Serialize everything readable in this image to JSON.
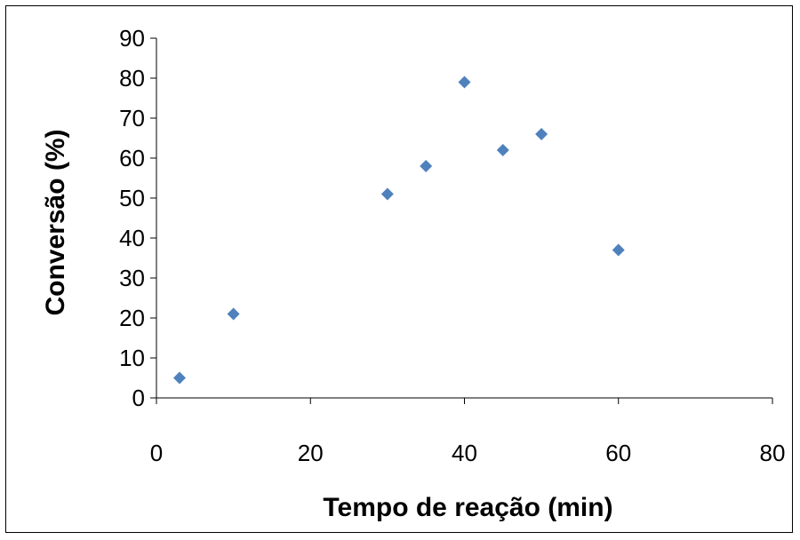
{
  "chart_data": {
    "type": "scatter",
    "title": "",
    "xlabel": "Tempo de reação (min)",
    "ylabel": "Conversão (%)",
    "xlim": [
      0,
      80
    ],
    "ylim": [
      0,
      90
    ],
    "x_ticks": [
      0,
      20,
      40,
      60,
      80
    ],
    "y_ticks": [
      0,
      10,
      20,
      30,
      40,
      50,
      60,
      70,
      80,
      90
    ],
    "grid": false,
    "legend": "none",
    "marker": "diamond",
    "series": [
      {
        "color": "#4F81BD",
        "x": [
          3,
          10,
          30,
          35,
          40,
          45,
          50,
          60
        ],
        "y": [
          5,
          21,
          51,
          58,
          79,
          62,
          66,
          37
        ]
      }
    ]
  }
}
